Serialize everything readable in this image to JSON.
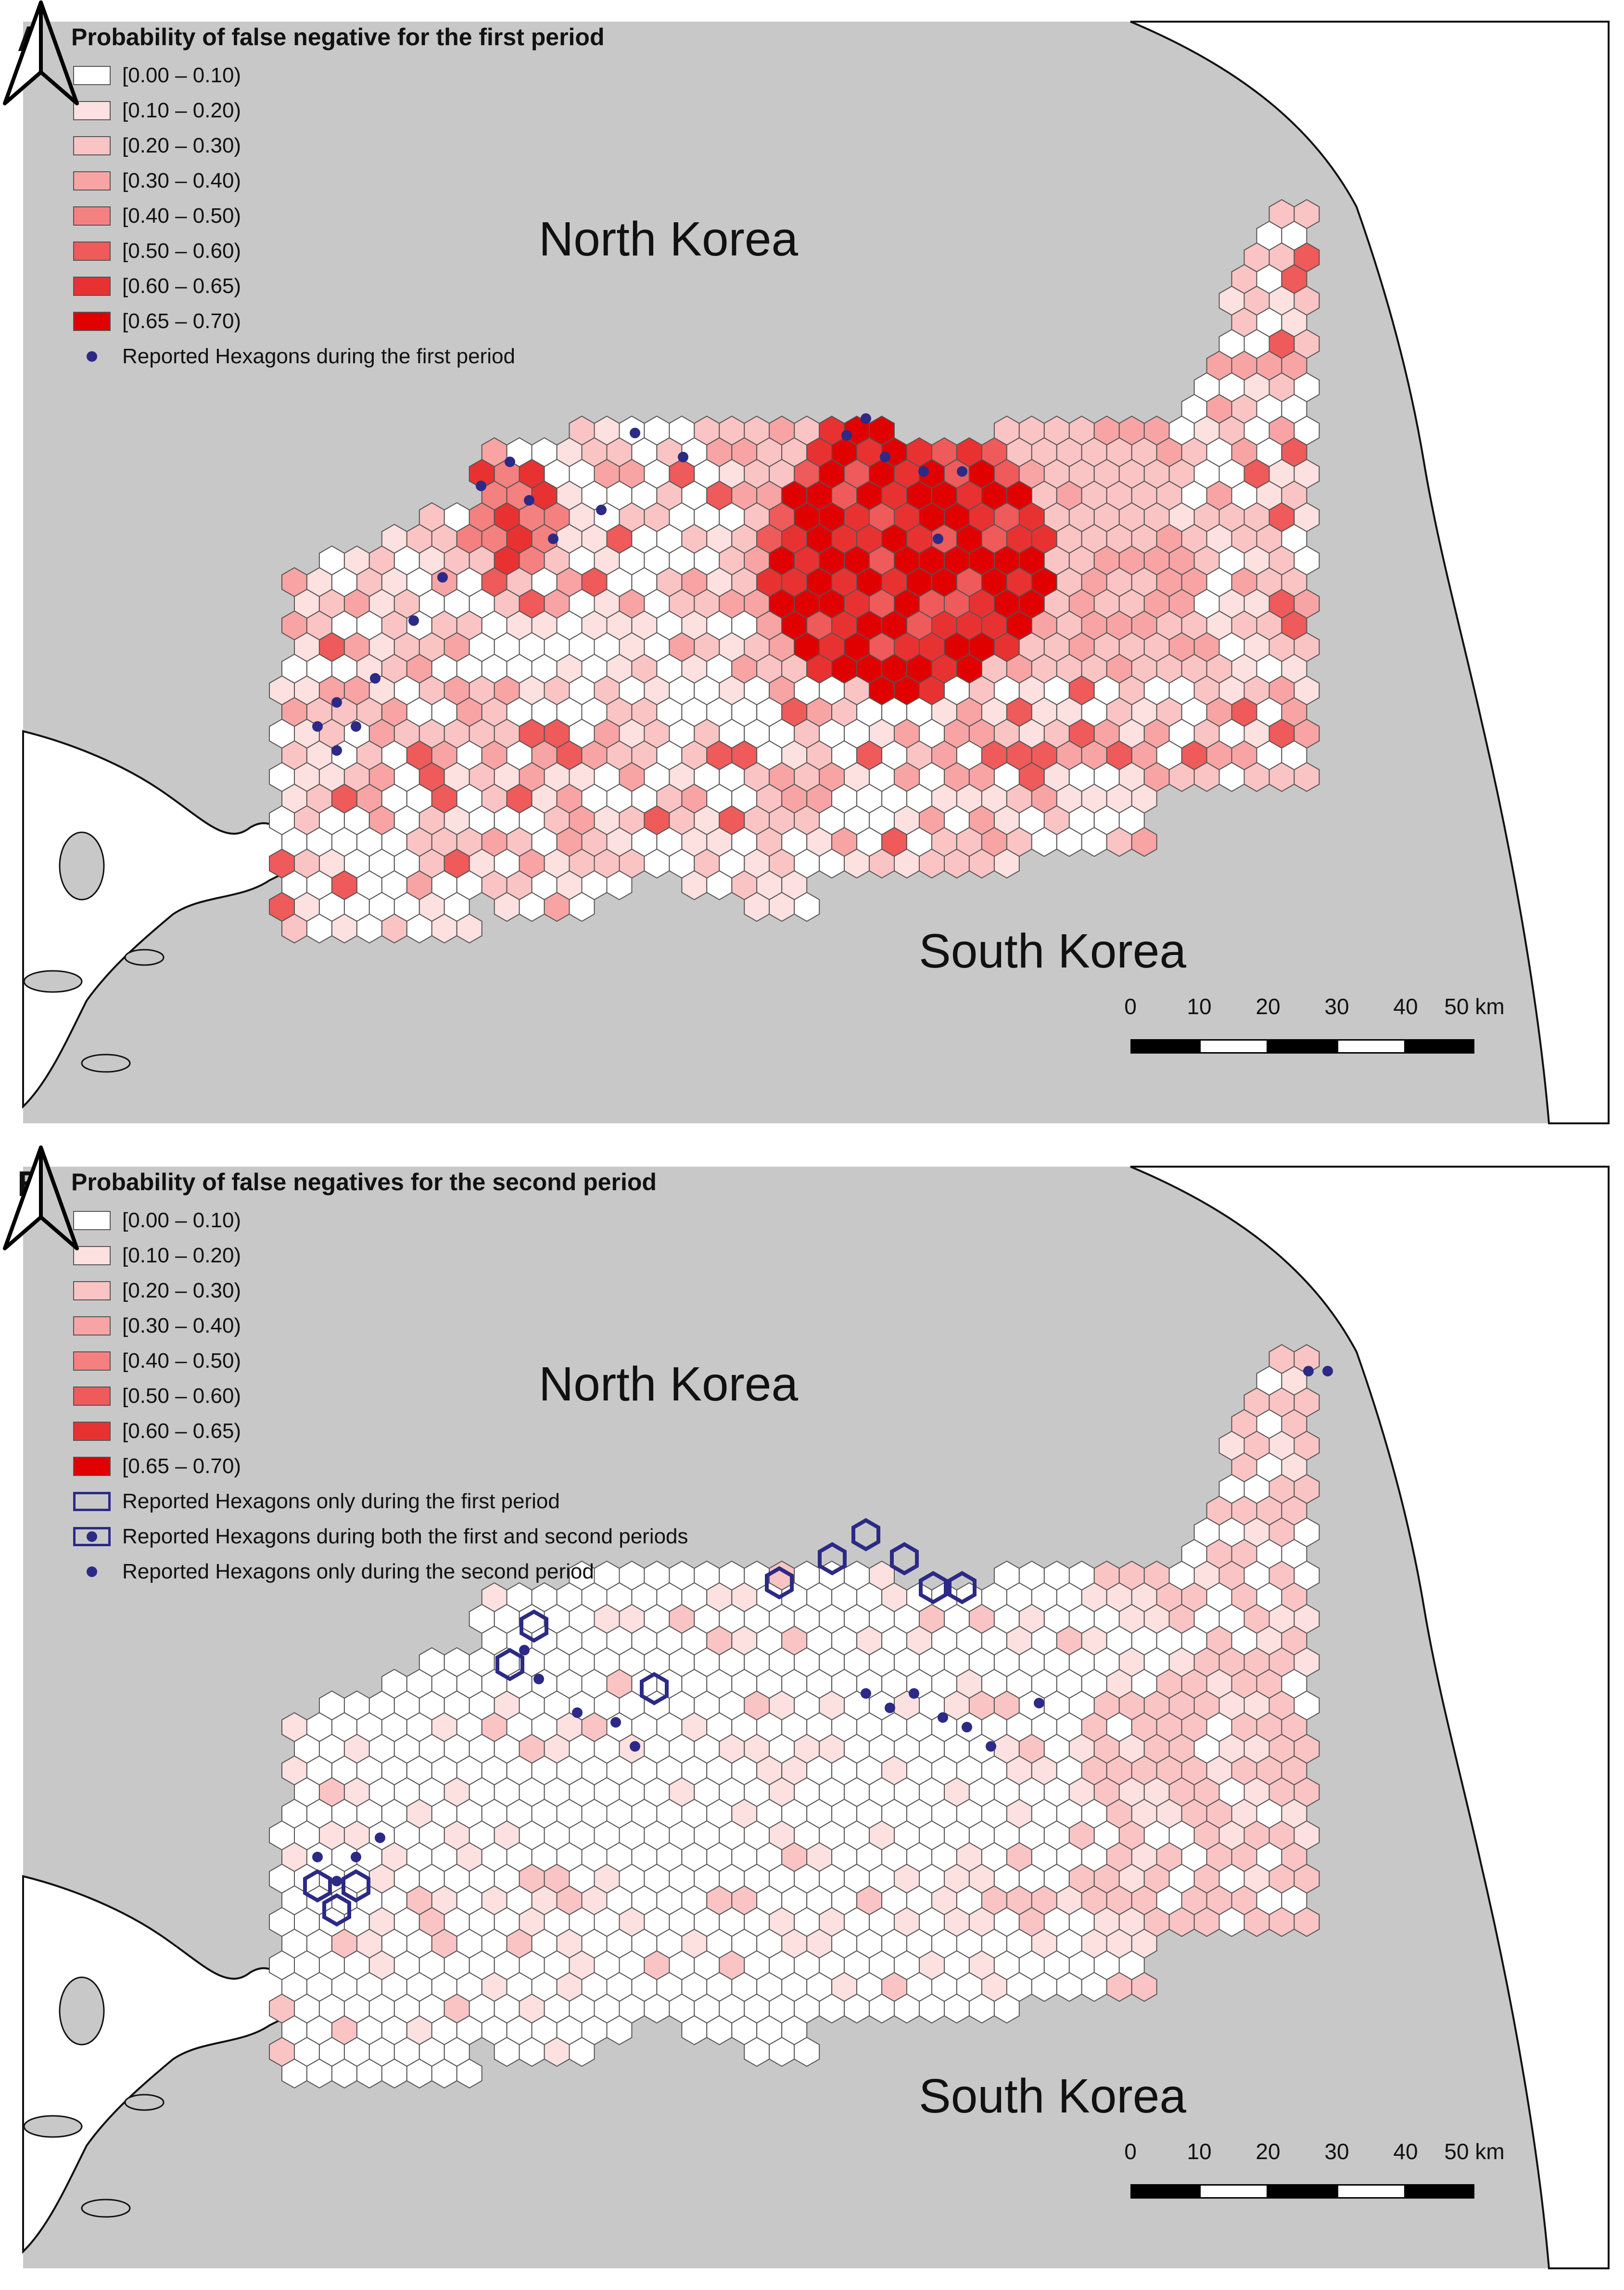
{
  "panels": [
    {
      "letter": "A",
      "legend_title": "Probability of false negative for the first period",
      "legend_classes": [
        {
          "label": "[0.00 – 0.10)",
          "color": "#ffffff"
        },
        {
          "label": "[0.10 – 0.20)",
          "color": "#fde0e0"
        },
        {
          "label": "[0.20 – 0.30)",
          "color": "#fbc4c4"
        },
        {
          "label": "[0.30 – 0.40)",
          "color": "#f8a4a4"
        },
        {
          "label": "[0.40 – 0.50)",
          "color": "#f48080"
        },
        {
          "label": "[0.50 – 0.60)",
          "color": "#ef5a5a"
        },
        {
          "label": "[0.60 – 0.65)",
          "color": "#e83232"
        },
        {
          "label": "[0.65 – 0.70)",
          "color": "#e00000"
        }
      ],
      "legend_symbols": [
        {
          "label": "Reported Hexagons during the first period",
          "symbol": "dot"
        }
      ],
      "north_label": "North Korea",
      "south_label": "South Korea"
    },
    {
      "letter": "B",
      "legend_title": "Probability of false negatives for the second period",
      "legend_classes": [
        {
          "label": "[0.00 – 0.10)",
          "color": "#ffffff"
        },
        {
          "label": "[0.10 – 0.20)",
          "color": "#fde0e0"
        },
        {
          "label": "[0.20 – 0.30)",
          "color": "#fbc4c4"
        },
        {
          "label": "[0.30 – 0.40)",
          "color": "#f8a4a4"
        },
        {
          "label": "[0.40 – 0.50)",
          "color": "#f48080"
        },
        {
          "label": "[0.50 – 0.60)",
          "color": "#ef5a5a"
        },
        {
          "label": "[0.60 – 0.65)",
          "color": "#e83232"
        },
        {
          "label": "[0.65 – 0.70)",
          "color": "#e00000"
        }
      ],
      "legend_symbols": [
        {
          "label": "Reported Hexagons only during the first period",
          "symbol": "hex-outline"
        },
        {
          "label": "Reported Hexagons during both the first and second periods",
          "symbol": "hex-outline-dot"
        },
        {
          "label": "Reported Hexagons only during the second period",
          "symbol": "dot"
        }
      ],
      "north_label": "North Korea",
      "south_label": "South Korea"
    }
  ],
  "scale_bar": {
    "ticks": [
      "0",
      "10",
      "20",
      "30",
      "40",
      "50 km"
    ]
  },
  "colors": {
    "land_background": "#c8c8c8",
    "sea": "#ffffff",
    "hex_stroke": "#555555",
    "report_marker": "#2c2a86",
    "accent_red": "#e00000"
  },
  "icons": {
    "north_arrow": "north-arrow-icon",
    "report_marker": "dot-icon"
  }
}
